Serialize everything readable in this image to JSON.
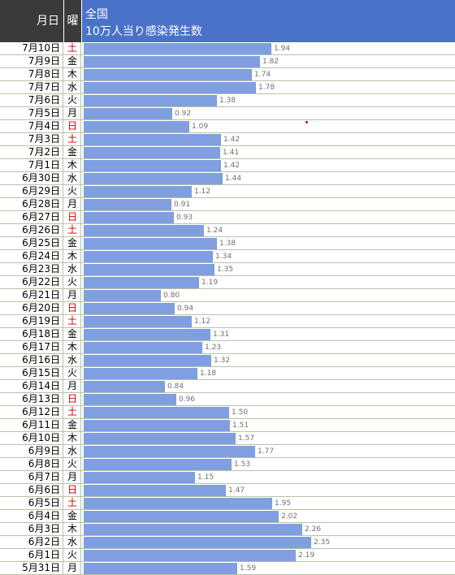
{
  "header": {
    "date_label": "月日",
    "dow_label": "曜",
    "title_line1": "全国",
    "title_line2": "10万人当り感染発生数"
  },
  "colors": {
    "bar": "#7f9fe0",
    "header_dark": "#3a3a3a",
    "header_blue": "#4a72c8",
    "weekend": "#cc0000"
  },
  "chart_data": {
    "type": "bar",
    "orientation": "horizontal",
    "title": "10万人当り感染発生数",
    "categories": [
      "7月10日",
      "7月9日",
      "7月8日",
      "7月7日",
      "7月6日",
      "7月5日",
      "7月4日",
      "7月3日",
      "7月2日",
      "7月1日",
      "6月30日",
      "6月29日",
      "6月28日",
      "6月27日",
      "6月26日",
      "6月25日",
      "6月24日",
      "6月23日",
      "6月22日",
      "6月21日",
      "6月20日",
      "6月19日",
      "6月18日",
      "6月17日",
      "6月16日",
      "6月15日",
      "6月14日",
      "6月13日",
      "6月12日",
      "6月11日",
      "6月10日",
      "6月9日",
      "6月8日",
      "6月7日",
      "6月6日",
      "6月5日",
      "6月4日",
      "6月3日",
      "6月2日",
      "6月1日",
      "5月31日"
    ],
    "weekdays": [
      "土",
      "金",
      "木",
      "水",
      "火",
      "月",
      "日",
      "土",
      "金",
      "木",
      "水",
      "火",
      "月",
      "日",
      "土",
      "金",
      "木",
      "水",
      "火",
      "月",
      "日",
      "土",
      "金",
      "木",
      "水",
      "火",
      "月",
      "日",
      "土",
      "金",
      "木",
      "水",
      "火",
      "月",
      "日",
      "土",
      "金",
      "木",
      "水",
      "火",
      "月"
    ],
    "values": [
      "1.94",
      "1.82",
      "1.74",
      "1.78",
      "1.38",
      "0.92",
      "1.09",
      "1.42",
      "1.41",
      "1.42",
      "1.44",
      "1.12",
      "0.91",
      "0.93",
      "1.24",
      "1.38",
      "1.34",
      "1.35",
      "1.19",
      "0.80",
      "0.94",
      "1.12",
      "1.31",
      "1.23",
      "1.32",
      "1.18",
      "0.84",
      "0.96",
      "1.50",
      "1.51",
      "1.57",
      "1.77",
      "1.53",
      "1.15",
      "1.47",
      "1.95",
      "2.02",
      "2.26",
      "2.35",
      "2.19",
      "1.59"
    ],
    "xlim": [
      0,
      2.7
    ]
  }
}
